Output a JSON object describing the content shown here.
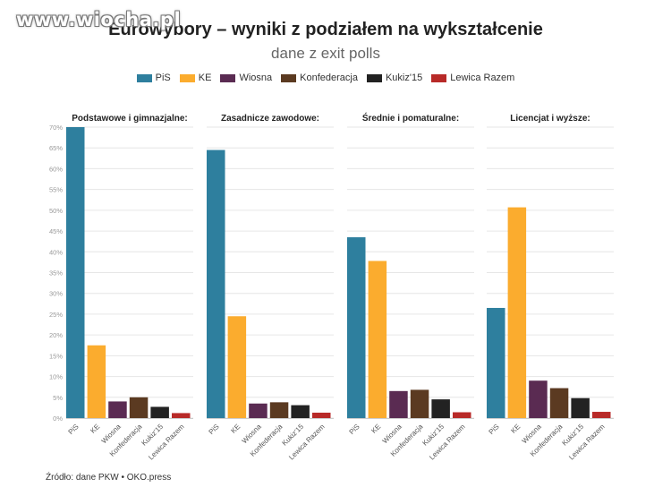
{
  "watermark": "www.wiocha.pl",
  "title": "Eurowybory – wyniki z podziałem na wykształcenie",
  "subtitle": "dane z exit polls",
  "source": "Źródło: dane PKW • OKO.press",
  "colors": {
    "PiS": "#2e7f9e",
    "KE": "#fbac2e",
    "Wiosna": "#5a2b52",
    "Konfederacja": "#5b3a21",
    "Kukiz'15": "#222222",
    "Lewica Razem": "#b82a28"
  },
  "chart_data": {
    "type": "bar",
    "title": "Eurowybory – wyniki z podziałem na wykształcenie",
    "subtitle": "dane z exit polls",
    "categories": [
      "PiS",
      "KE",
      "Wiosna",
      "Konfederacja",
      "Kukiz'15",
      "Lewica Razem"
    ],
    "y_ticks": [
      "0%",
      "5%",
      "10%",
      "15%",
      "20%",
      "25%",
      "30%",
      "35%",
      "40%",
      "45%",
      "50%",
      "55%",
      "60%",
      "65%",
      "70%"
    ],
    "ylim": [
      0,
      70
    ],
    "legend": "top-center",
    "grid": true,
    "panels": [
      {
        "title": "Podstawowe i gimnazjalne:",
        "values": [
          70,
          17.5,
          4,
          5,
          2.7,
          1.2
        ]
      },
      {
        "title": "Zasadnicze zawodowe:",
        "values": [
          64.5,
          24.5,
          3.5,
          3.8,
          3.1,
          1.3
        ]
      },
      {
        "title": "Średnie i pomaturalne:",
        "values": [
          43.5,
          37.8,
          6.5,
          6.8,
          4.5,
          1.4
        ]
      },
      {
        "title": "Licencjat i wyższe:",
        "values": [
          26.5,
          50.7,
          9,
          7.2,
          4.8,
          1.5
        ]
      }
    ]
  }
}
